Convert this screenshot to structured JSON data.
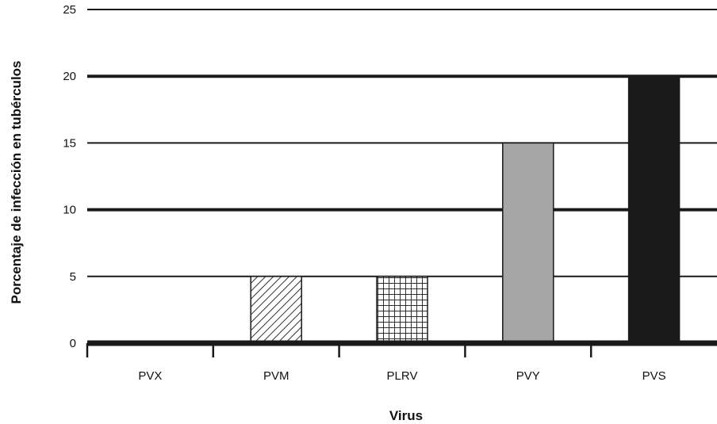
{
  "chart_data": {
    "type": "bar",
    "title": "",
    "xlabel": "Virus",
    "ylabel": "Porcentaje de infección en tubérculos",
    "categories": [
      "PVX",
      "PVM",
      "PLRV",
      "PVY",
      "PVS"
    ],
    "values": [
      0,
      5,
      5,
      15,
      20
    ],
    "ylim": [
      0,
      25
    ],
    "yticks": [
      "0",
      "5",
      "10",
      "15",
      "20",
      "25"
    ],
    "grid": true,
    "legend": "none",
    "bar_styles": [
      "none",
      "diagonal-hatch",
      "grid-hatch",
      "solid-gray",
      "solid-black"
    ],
    "colors": {
      "gray": "#a6a6a6",
      "black": "#1a1a1a",
      "axis": "#1a1a1a"
    }
  }
}
